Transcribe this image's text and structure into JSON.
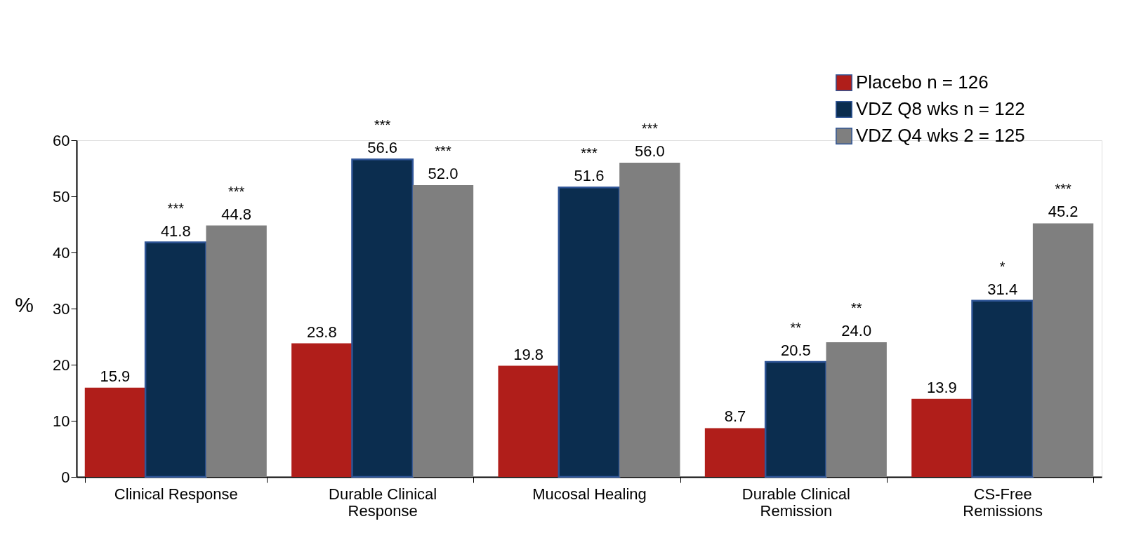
{
  "chart_data": {
    "type": "bar",
    "ylabel": "%",
    "categories": [
      "Clinical Response",
      "Durable Clinical\nResponse",
      "Mucosal Healing",
      "Durable Clinical\nRemission",
      "CS-Free\nRemissions"
    ],
    "series": [
      {
        "name": "Placebo n = 126",
        "color": "#b01e1a",
        "values": [
          15.9,
          23.8,
          19.8,
          8.7,
          13.9
        ],
        "value_labels": [
          "15.9",
          "23.8",
          "19.8",
          "8.7",
          "13.9"
        ]
      },
      {
        "name": "VDZ Q8 wks n = 122",
        "color": "#0b2d4f",
        "values": [
          41.8,
          56.6,
          51.6,
          20.5,
          31.4
        ],
        "value_labels": [
          "41.8",
          "56.6",
          "51.6",
          "20.5",
          "31.4"
        ]
      },
      {
        "name": "VDZ Q4 wks 2 = 125",
        "color": "#7f7f7f",
        "values": [
          44.8,
          52.0,
          56.0,
          24.0,
          45.2
        ],
        "value_labels": [
          "44.8",
          "52.0",
          "56.0",
          "24.0",
          "45.2"
        ]
      }
    ],
    "ylim": [
      0,
      60
    ],
    "yticks": [
      0,
      10,
      20,
      30,
      40,
      50,
      60
    ],
    "grid": false,
    "legend": "top right",
    "annotations": [
      "***",
      "***",
      "***",
      "***",
      "***",
      "***",
      "**",
      "**",
      "*",
      "***"
    ]
  }
}
